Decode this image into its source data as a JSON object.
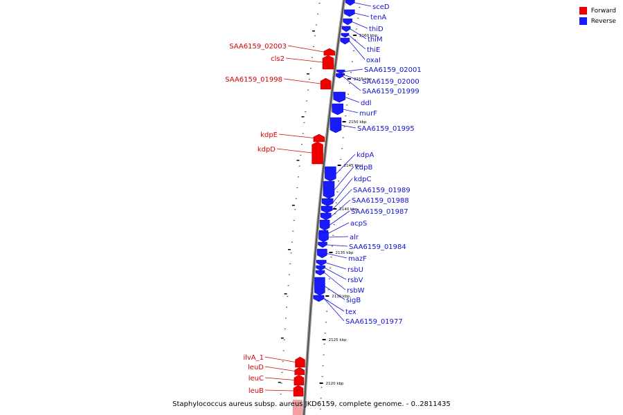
{
  "caption": "Staphylococcus aureus subsp. aureus JKD6159, complete genome. - 0..2811435",
  "legend": [
    {
      "label": "Forward",
      "color": "#ee0000"
    },
    {
      "label": "Reverse",
      "color": "#1a1aff"
    }
  ],
  "colors": {
    "forward": "#ee0000",
    "reverse": "#1a1aff",
    "forward_text": "#d40000",
    "reverse_text": "#1010d0"
  },
  "scale_ticks": [
    {
      "label": "2160 kbp"
    },
    {
      "label": "2155 kbp"
    },
    {
      "label": "2150 kbp"
    },
    {
      "label": "2145 kbp"
    },
    {
      "label": "2140 kbp"
    },
    {
      "label": "2135 kbp"
    },
    {
      "label": "2130 kbp"
    },
    {
      "label": "2125 kbp"
    },
    {
      "label": "2120 kbp"
    }
  ],
  "genes": [
    {
      "name": "sceD",
      "strand": "reverse"
    },
    {
      "name": "tenA",
      "strand": "reverse"
    },
    {
      "name": "thiD",
      "strand": "reverse"
    },
    {
      "name": "thiM",
      "strand": "reverse"
    },
    {
      "name": "thiE",
      "strand": "reverse"
    },
    {
      "name": "oxaI",
      "strand": "reverse"
    },
    {
      "name": "SAA6159_02003",
      "strand": "forward"
    },
    {
      "name": "cls2",
      "strand": "forward"
    },
    {
      "name": "SAA6159_02001",
      "strand": "reverse"
    },
    {
      "name": "SAA6159_02000",
      "strand": "reverse"
    },
    {
      "name": "SAA6159_01999",
      "strand": "reverse"
    },
    {
      "name": "SAA6159_01998",
      "strand": "forward"
    },
    {
      "name": "ddl",
      "strand": "reverse"
    },
    {
      "name": "murF",
      "strand": "reverse"
    },
    {
      "name": "SAA6159_01995",
      "strand": "reverse"
    },
    {
      "name": "kdpE",
      "strand": "forward"
    },
    {
      "name": "kdpD",
      "strand": "forward"
    },
    {
      "name": "kdpA",
      "strand": "reverse"
    },
    {
      "name": "kdpB",
      "strand": "reverse"
    },
    {
      "name": "kdpC",
      "strand": "reverse"
    },
    {
      "name": "SAA6159_01989",
      "strand": "reverse"
    },
    {
      "name": "SAA6159_01988",
      "strand": "reverse"
    },
    {
      "name": "SAA6159_01987",
      "strand": "reverse"
    },
    {
      "name": "acpS",
      "strand": "reverse"
    },
    {
      "name": "alr",
      "strand": "reverse"
    },
    {
      "name": "SAA6159_01984",
      "strand": "reverse"
    },
    {
      "name": "mazF",
      "strand": "reverse"
    },
    {
      "name": "rsbU",
      "strand": "reverse"
    },
    {
      "name": "rsbV",
      "strand": "reverse"
    },
    {
      "name": "rsbW",
      "strand": "reverse"
    },
    {
      "name": "sigB",
      "strand": "reverse"
    },
    {
      "name": "tex",
      "strand": "reverse"
    },
    {
      "name": "SAA6159_01977",
      "strand": "reverse"
    },
    {
      "name": "ilvA_1",
      "strand": "forward"
    },
    {
      "name": "leuD",
      "strand": "forward"
    },
    {
      "name": "leuC",
      "strand": "forward"
    },
    {
      "name": "leuB",
      "strand": "forward"
    }
  ]
}
